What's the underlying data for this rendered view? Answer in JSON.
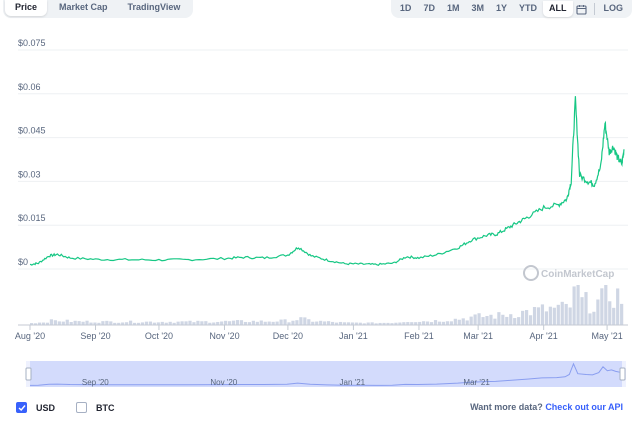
{
  "tabs": [
    {
      "label": "Price",
      "active": true
    },
    {
      "label": "Market Cap",
      "active": false
    },
    {
      "label": "TradingView",
      "active": false
    }
  ],
  "ranges": [
    {
      "label": "1D",
      "active": false
    },
    {
      "label": "7D",
      "active": false
    },
    {
      "label": "1M",
      "active": false
    },
    {
      "label": "3M",
      "active": false
    },
    {
      "label": "1Y",
      "active": false
    },
    {
      "label": "YTD",
      "active": false
    },
    {
      "label": "ALL",
      "active": true
    }
  ],
  "calendar_icon": "calendar-icon",
  "log_label": "LOG",
  "watermark": "CoinMarketCap",
  "colors": {
    "line": "#16c784",
    "accent": "#3861fb",
    "volume": "#cfd6e4",
    "navigator": "#a6b6f5"
  },
  "chart_data": {
    "type": "line",
    "title": "",
    "xlabel": "",
    "ylabel": "",
    "y_ticks": [
      "$0",
      "$0.015",
      "$0.03",
      "$0.045",
      "$0.06",
      "$0.075"
    ],
    "ylim": [
      0,
      0.075
    ],
    "x_ticks": [
      "Aug '20",
      "Sep '20",
      "Oct '20",
      "Nov '20",
      "Dec '20",
      "Jan '21",
      "Feb '21",
      "Mar '21",
      "Apr '21",
      "May '21"
    ],
    "navigator_ticks": [
      "Sep '20",
      "Nov '20",
      "Jan '21",
      "Mar '21"
    ],
    "series": [
      {
        "values": [
          [
            "2020-08-01",
            0.0015
          ],
          [
            "2020-08-05",
            0.002
          ],
          [
            "2020-08-10",
            0.0045
          ],
          [
            "2020-08-14",
            0.005
          ],
          [
            "2020-08-20",
            0.0038
          ],
          [
            "2020-09-01",
            0.0033
          ],
          [
            "2020-09-15",
            0.0032
          ],
          [
            "2020-10-01",
            0.0031
          ],
          [
            "2020-10-15",
            0.0032
          ],
          [
            "2020-11-01",
            0.0036
          ],
          [
            "2020-11-10",
            0.004
          ],
          [
            "2020-11-20",
            0.0038
          ],
          [
            "2020-12-01",
            0.0048
          ],
          [
            "2020-12-06",
            0.0075
          ],
          [
            "2020-12-12",
            0.0045
          ],
          [
            "2020-12-20",
            0.003
          ],
          [
            "2020-12-28",
            0.0018
          ],
          [
            "2021-01-05",
            0.0017
          ],
          [
            "2021-01-12",
            0.0015
          ],
          [
            "2021-01-20",
            0.002
          ],
          [
            "2021-01-26",
            0.0042
          ],
          [
            "2021-02-01",
            0.0038
          ],
          [
            "2021-02-10",
            0.005
          ],
          [
            "2021-02-20",
            0.0075
          ],
          [
            "2021-02-26",
            0.01
          ],
          [
            "2021-03-05",
            0.0115
          ],
          [
            "2021-03-10",
            0.012
          ],
          [
            "2021-03-15",
            0.014
          ],
          [
            "2021-03-20",
            0.016
          ],
          [
            "2021-03-25",
            0.018
          ],
          [
            "2021-04-01",
            0.021
          ],
          [
            "2021-04-08",
            0.022
          ],
          [
            "2021-04-12",
            0.024
          ],
          [
            "2021-04-14",
            0.03
          ],
          [
            "2021-04-16",
            0.058
          ],
          [
            "2021-04-18",
            0.032
          ],
          [
            "2021-04-22",
            0.03
          ],
          [
            "2021-04-25",
            0.029
          ],
          [
            "2021-04-28",
            0.035
          ],
          [
            "2021-04-30",
            0.05
          ],
          [
            "2021-05-02",
            0.04
          ],
          [
            "2021-05-04",
            0.042
          ],
          [
            "2021-05-06",
            0.038
          ],
          [
            "2021-05-08",
            0.036
          ],
          [
            "2021-05-09",
            0.041
          ]
        ]
      }
    ]
  },
  "bottom": {
    "usd_label": "USD",
    "usd_checked": true,
    "btc_label": "BTC",
    "btc_checked": false,
    "api_prefix": "Want more data?",
    "api_link": "Check out our API"
  }
}
